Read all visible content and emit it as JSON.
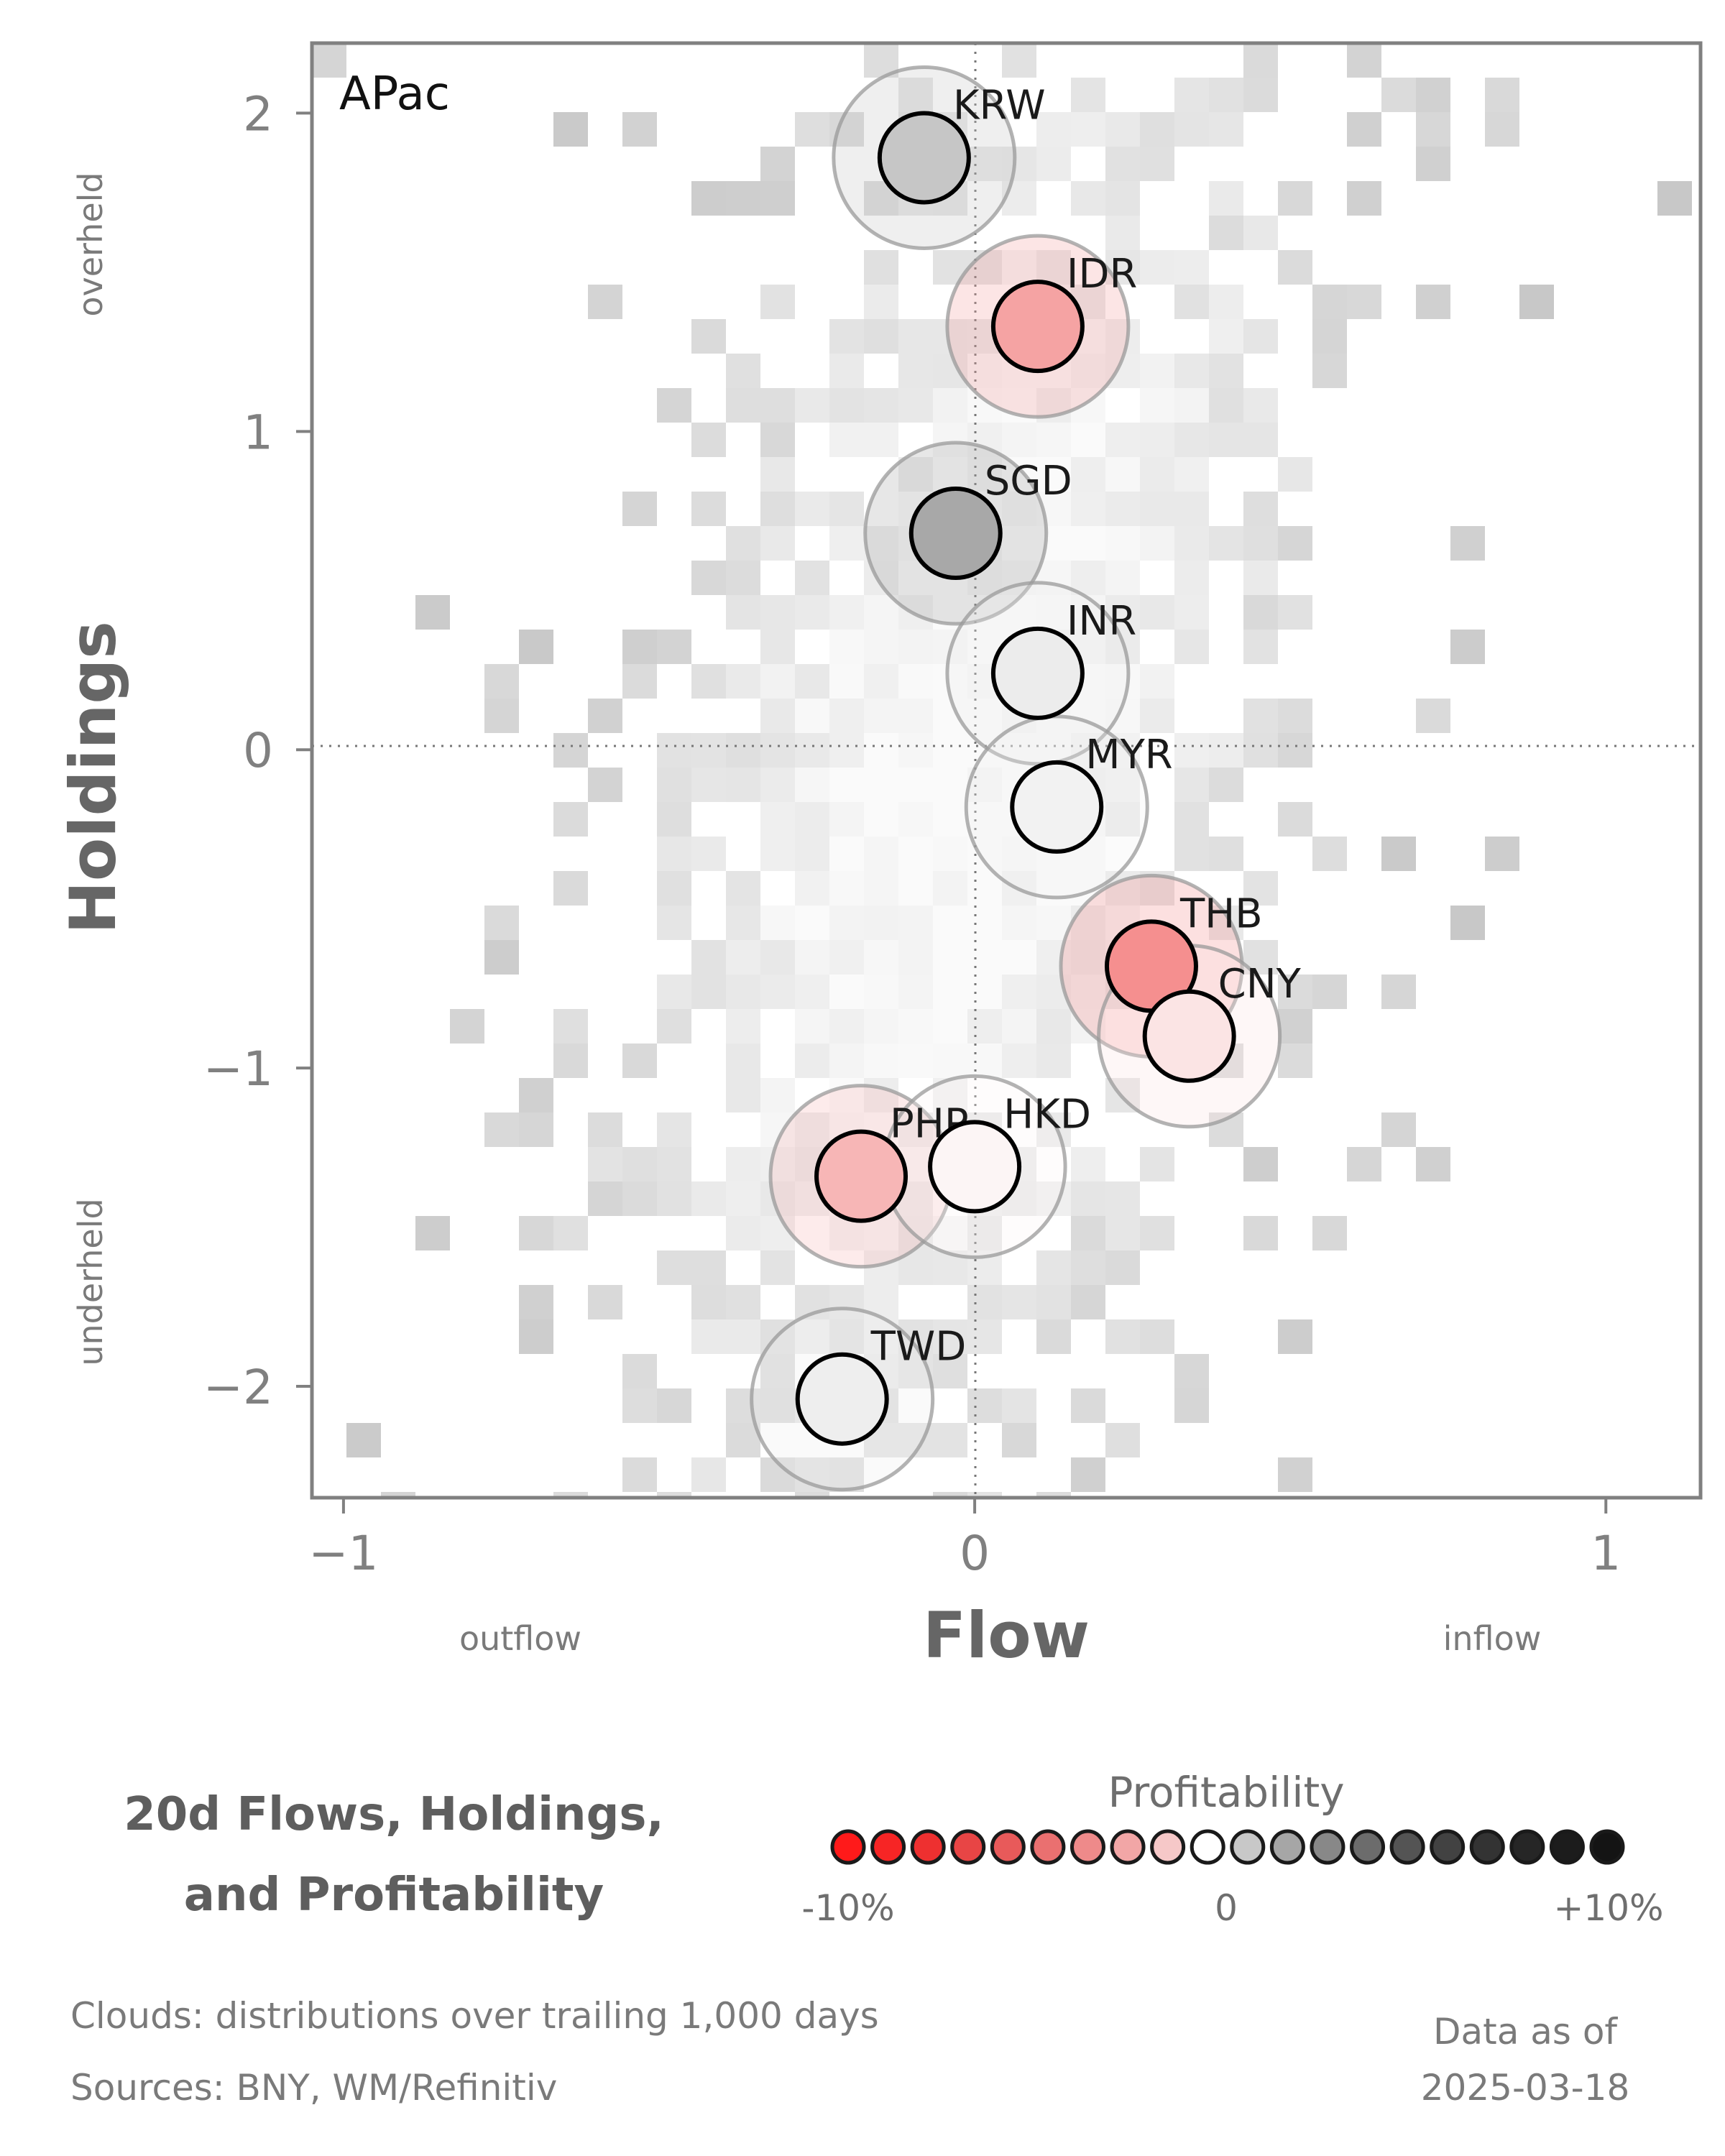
{
  "chart_data": {
    "type": "scatter",
    "panel_label": "APac",
    "xlabel": "Flow",
    "ylabel": "Holdings",
    "xlim": [
      -1.05,
      1.15
    ],
    "ylim": [
      -2.35,
      2.22
    ],
    "x_ticks": [
      {
        "value": -1,
        "label": "−1"
      },
      {
        "value": 0,
        "label": "0"
      },
      {
        "value": 1,
        "label": "1"
      }
    ],
    "y_ticks": [
      {
        "value": 2,
        "label": "2"
      },
      {
        "value": 1,
        "label": "1"
      },
      {
        "value": 0,
        "label": "0"
      },
      {
        "value": -1,
        "label": "−1"
      },
      {
        "value": -2,
        "label": "−2"
      }
    ],
    "x_side_labels": {
      "left": "outflow",
      "right": "inflow"
    },
    "y_side_labels": {
      "top": "overheld",
      "bottom": "underheld"
    },
    "grid": false,
    "reference_lines": {
      "x": 0,
      "y": 0,
      "style": "dotted"
    },
    "background": "2d histogram cloud of trailing distributions (grey shades)",
    "series": [
      {
        "label": "KRW",
        "x": -0.08,
        "y": 1.86,
        "profitability": 0.2,
        "color": "#c6c6c6"
      },
      {
        "label": "IDR",
        "x": 0.1,
        "y": 1.33,
        "profitability": -3.0,
        "color": "#f5a3a3"
      },
      {
        "label": "SGD",
        "x": -0.03,
        "y": 0.68,
        "profitability": 4.0,
        "color": "#a8a8a8"
      },
      {
        "label": "INR",
        "x": 0.1,
        "y": 0.24,
        "profitability": 0.3,
        "color": "#ececec"
      },
      {
        "label": "MYR",
        "x": 0.13,
        "y": -0.18,
        "profitability": 0.2,
        "color": "#f2f2f2"
      },
      {
        "label": "THB",
        "x": 0.28,
        "y": -0.68,
        "profitability": -4.0,
        "color": "#f58f8f"
      },
      {
        "label": "CNY",
        "x": 0.34,
        "y": -0.9,
        "profitability": -0.6,
        "color": "#fbe4e4"
      },
      {
        "label": "PHP",
        "x": -0.18,
        "y": -1.34,
        "profitability": -2.0,
        "color": "#f7b6b6"
      },
      {
        "label": "HKD",
        "x": 0.0,
        "y": -1.31,
        "profitability": -0.3,
        "color": "#fcf5f5"
      },
      {
        "label": "TWD",
        "x": -0.21,
        "y": -2.04,
        "profitability": 0.3,
        "color": "#eeeeee"
      }
    ]
  },
  "title": {
    "line1": "20d Flows, Holdings,",
    "line2": "and Profitability"
  },
  "legend": {
    "title": "Profitability",
    "min_label": "-10%",
    "mid_label": "0",
    "max_label": "+10%",
    "swatches": [
      "#ff1a1a",
      "#f72525",
      "#ee3030",
      "#e84545",
      "#e85a5a",
      "#ea7070",
      "#ee8a8a",
      "#f2a6a6",
      "#f6c8c8",
      "#ffffff",
      "#c8c8c8",
      "#a6a6a6",
      "#888888",
      "#6c6c6c",
      "#545454",
      "#424242",
      "#333333",
      "#262626",
      "#1c1c1c",
      "#141414"
    ]
  },
  "footer": {
    "clouds_note": "Clouds:  distributions over trailing 1,000 days",
    "sources_note": "Sources:  BNY, WM/Refinitiv",
    "data_as_of_label": "Data as of",
    "data_as_of_date": "2025-03-18"
  }
}
